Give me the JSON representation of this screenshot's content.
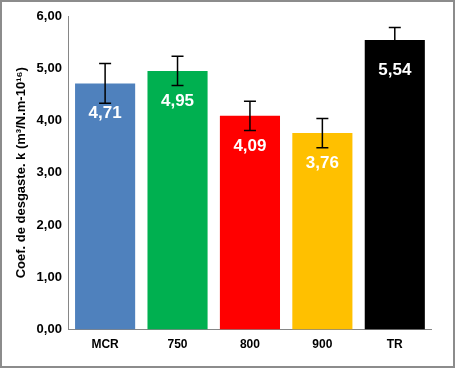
{
  "chart_data": {
    "type": "bar",
    "y_label": "Coef. de desgaste. k (m³/N.m-10¹⁶)",
    "categories": [
      "MCR",
      "750",
      "800",
      "900",
      "TR"
    ],
    "values": [
      4.71,
      4.95,
      4.09,
      3.76,
      5.54
    ],
    "value_labels": [
      "4,71",
      "4,95",
      "4,09",
      "3,76",
      "5,54"
    ],
    "errors": [
      0.38,
      0.28,
      0.28,
      0.28,
      0.24
    ],
    "colors": [
      "#4F81BD",
      "#00B050",
      "#FF0000",
      "#FFC000",
      "#000000"
    ],
    "ylim": [
      0,
      6
    ],
    "yticks": [
      {
        "value": 0,
        "label": "0,00"
      },
      {
        "value": 1,
        "label": "1,00"
      },
      {
        "value": 2,
        "label": "2,00"
      },
      {
        "value": 3,
        "label": "3,00"
      },
      {
        "value": 4,
        "label": "4,00"
      },
      {
        "value": 5,
        "label": "5,00"
      },
      {
        "value": 6,
        "label": "6,00"
      }
    ],
    "grid": false,
    "data_labels": true
  }
}
